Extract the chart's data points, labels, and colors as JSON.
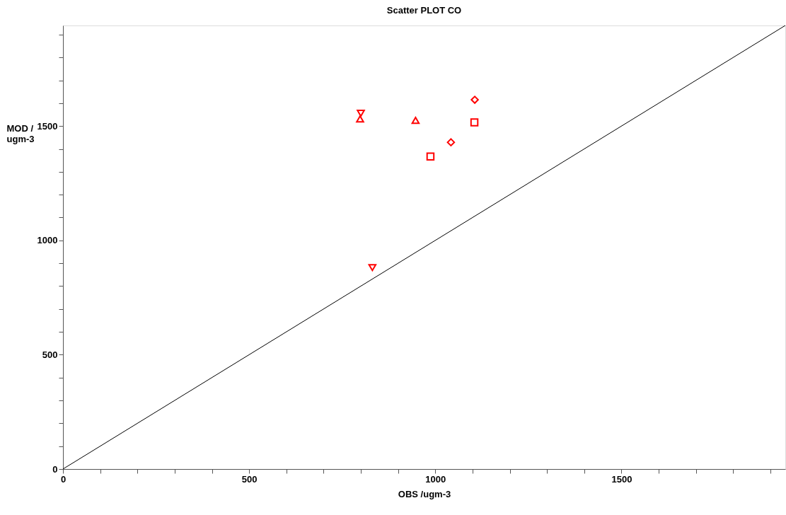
{
  "chart_data": {
    "type": "scatter",
    "title": "Scatter PLOT   CO",
    "xlabel": "OBS /ugm-3",
    "ylabel": "MOD / ugm-3",
    "xlim": [
      0,
      1940
    ],
    "ylim": [
      0,
      1940
    ],
    "xticks": [
      0,
      {
        "value": 100,
        "label": null
      },
      {
        "value": 200,
        "label": null
      },
      {
        "value": 300,
        "label": null
      },
      {
        "value": 400,
        "label": null
      },
      500,
      {
        "value": 600,
        "label": null
      },
      {
        "value": 700,
        "label": null
      },
      {
        "value": 800,
        "label": null
      },
      {
        "value": 900,
        "label": null
      },
      1000,
      {
        "value": 1100,
        "label": null
      },
      {
        "value": 1200,
        "label": null
      },
      {
        "value": 1300,
        "label": null
      },
      {
        "value": 1400,
        "label": null
      },
      1500,
      {
        "value": 1600,
        "label": null
      },
      {
        "value": 1700,
        "label": null
      },
      {
        "value": 1800,
        "label": null
      },
      {
        "value": 1900,
        "label": null
      }
    ],
    "yticks": [
      0,
      {
        "value": 100,
        "label": null
      },
      {
        "value": 200,
        "label": null
      },
      {
        "value": 300,
        "label": null
      },
      {
        "value": 400,
        "label": null
      },
      500,
      {
        "value": 600,
        "label": null
      },
      {
        "value": 700,
        "label": null
      },
      {
        "value": 800,
        "label": null
      },
      {
        "value": 900,
        "label": null
      },
      1000,
      {
        "value": 1100,
        "label": null
      },
      {
        "value": 1200,
        "label": null
      },
      {
        "value": 1300,
        "label": null
      },
      {
        "value": 1400,
        "label": null
      },
      1500,
      {
        "value": 1600,
        "label": null
      },
      {
        "value": 1700,
        "label": null
      },
      {
        "value": 1800,
        "label": null
      },
      {
        "value": 1900,
        "label": null
      }
    ],
    "grid": false,
    "series": [
      {
        "type": "line",
        "color": "#000000",
        "x": [
          0,
          1940
        ],
        "values": [
          0,
          1940
        ],
        "marker": "none",
        "line_style": "solid"
      },
      {
        "color": "#ff0000",
        "x": [
          798
        ],
        "values": [
          1531
        ],
        "marker": "triangle"
      },
      {
        "color": "#ff0000",
        "x": [
          800
        ],
        "values": [
          1556
        ],
        "marker": "triangle-down"
      },
      {
        "color": "#ff0000",
        "x": [
          947
        ],
        "values": [
          1525
        ],
        "marker": "triangle"
      },
      {
        "color": "#ff0000",
        "x": [
          1106
        ],
        "values": [
          1615
        ],
        "marker": "diamond"
      },
      {
        "color": "#ff0000",
        "x": [
          1105
        ],
        "values": [
          1516
        ],
        "marker": "square"
      },
      {
        "color": "#ff0000",
        "x": [
          1042
        ],
        "values": [
          1429
        ],
        "marker": "diamond"
      },
      {
        "color": "#ff0000",
        "x": [
          987
        ],
        "values": [
          1367
        ],
        "marker": "square"
      },
      {
        "color": "#ff0000",
        "x": [
          831
        ],
        "values": [
          881
        ],
        "marker": "triangle-down"
      }
    ]
  }
}
